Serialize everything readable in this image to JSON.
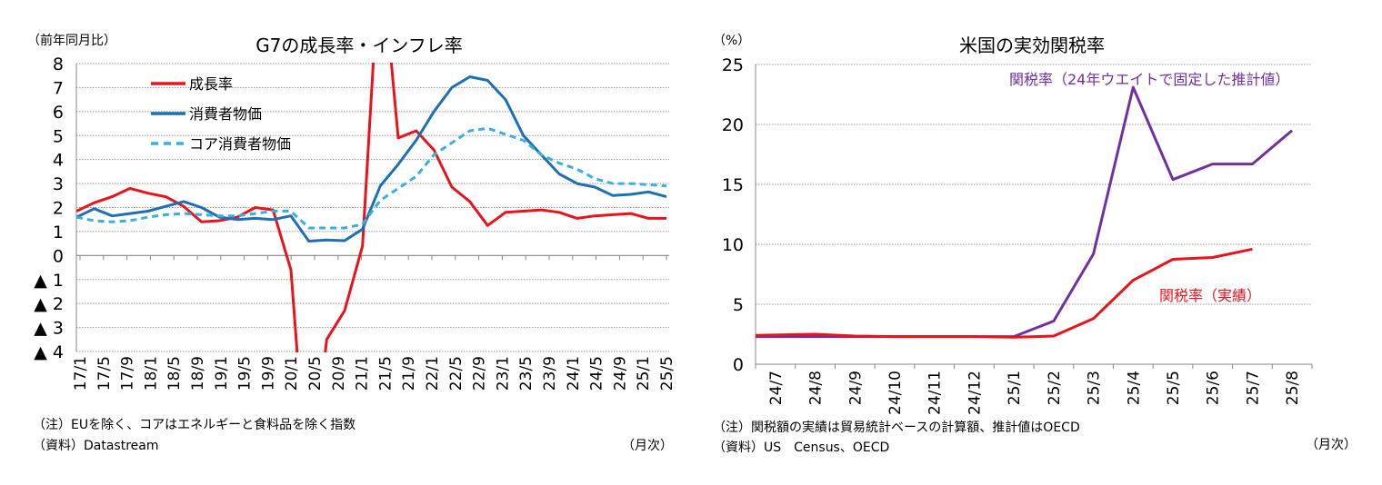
{
  "chart_data": [
    {
      "type": "line",
      "title": "G7の成長率・インフレ率",
      "ylabel": "（前年同月比）",
      "xlabel": "（月次）",
      "ylim": [
        -4,
        8
      ],
      "ytick_labels": [
        "▲ 4",
        "▲ 3",
        "▲ 2",
        "▲ 1",
        "0",
        "1",
        "2",
        "3",
        "4",
        "5",
        "6",
        "7",
        "8"
      ],
      "yticks": [
        -4,
        -3,
        -2,
        -1,
        0,
        1,
        2,
        3,
        4,
        5,
        6,
        7,
        8
      ],
      "x_tick_labels": [
        "17/1",
        "17/5",
        "17/9",
        "18/1",
        "18/5",
        "18/9",
        "19/1",
        "19/5",
        "19/9",
        "20/1",
        "20/5",
        "20/9",
        "21/1",
        "21/5",
        "21/9",
        "22/1",
        "22/5",
        "22/9",
        "23/1",
        "23/5",
        "23/9",
        "24/1",
        "24/5",
        "24/9",
        "25/1",
        "25/5"
      ],
      "grid": true,
      "legend_position": "top-left",
      "series": [
        {
          "name": "成長率",
          "color": "#e8141b",
          "style": "solid",
          "values": [
            1.85,
            2.2,
            2.45,
            2.8,
            2.6,
            2.45,
            2.05,
            1.4,
            1.45,
            1.6,
            2.0,
            1.9,
            -0.6,
            -10.5,
            -3.5,
            -2.3,
            0.4,
            13.0,
            4.9,
            5.2,
            4.4,
            2.85,
            2.25,
            1.25,
            1.8,
            1.85,
            1.9,
            1.8,
            1.55,
            1.65,
            1.7,
            1.75,
            1.55,
            1.55
          ]
        },
        {
          "name": "消費者物価",
          "color": "#1f6fb4",
          "style": "solid",
          "values": [
            1.6,
            1.95,
            1.65,
            1.75,
            1.85,
            2.05,
            2.25,
            2.0,
            1.6,
            1.5,
            1.55,
            1.5,
            1.65,
            0.6,
            0.65,
            0.62,
            1.1,
            2.9,
            3.8,
            4.8,
            6.0,
            7.0,
            7.45,
            7.3,
            6.5,
            5.0,
            4.2,
            3.4,
            3.0,
            2.85,
            2.5,
            2.55,
            2.65,
            2.45
          ]
        },
        {
          "name": "コア消費者物価",
          "color": "#3aafe0",
          "style": "dashed",
          "values": [
            1.6,
            1.45,
            1.4,
            1.45,
            1.6,
            1.7,
            1.75,
            1.7,
            1.65,
            1.65,
            1.75,
            1.85,
            1.85,
            1.15,
            1.15,
            1.15,
            1.3,
            2.3,
            2.8,
            3.3,
            4.2,
            4.7,
            5.2,
            5.3,
            5.05,
            4.8,
            4.2,
            3.85,
            3.6,
            3.2,
            3.0,
            3.0,
            2.95,
            2.9
          ]
        }
      ],
      "notes": [
        "（注）EUを除く、コアはエネルギーと食料品を除く指数",
        "（資料）Datastream"
      ]
    },
    {
      "type": "line",
      "title": "米国の実効関税率",
      "ylabel": "（%）",
      "xlabel": "（月次）",
      "ylim": [
        0,
        25
      ],
      "yticks": [
        0,
        5,
        10,
        15,
        20,
        25
      ],
      "categories": [
        "24/7",
        "24/8",
        "24/9",
        "24/10",
        "24/11",
        "24/12",
        "25/1",
        "25/2",
        "25/3",
        "25/4",
        "25/5",
        "25/6",
        "25/7",
        "25/8"
      ],
      "grid": true,
      "series": [
        {
          "name": "関税率（24年ウエイトで固定した推計値）",
          "color": "#7030a0",
          "values": [
            2.3,
            2.3,
            2.3,
            2.3,
            2.3,
            2.3,
            2.3,
            3.6,
            9.2,
            23.1,
            15.4,
            16.7,
            16.7,
            19.5
          ]
        },
        {
          "name": "関税率（実績）",
          "color": "#e8141b",
          "values": [
            2.4,
            2.5,
            2.35,
            2.3,
            2.3,
            2.3,
            2.25,
            2.35,
            3.8,
            7.0,
            8.75,
            8.9,
            9.6,
            null
          ]
        }
      ],
      "notes": [
        "（注）関税額の実績は貿易統計ベースの計算額、推計値はOECD",
        "（資料）US　Census、OECD"
      ]
    }
  ]
}
